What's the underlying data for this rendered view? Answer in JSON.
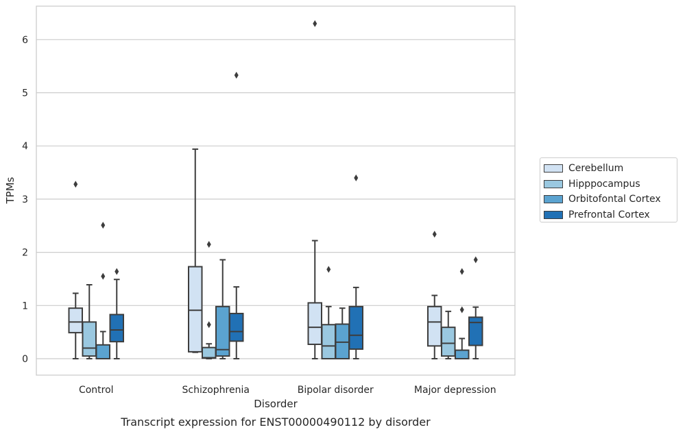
{
  "chart_data": {
    "type": "box",
    "title": "",
    "caption": "Transcript expression for ENST00000490112 by disorder",
    "xlabel": "Disorder",
    "ylabel": "TPMs",
    "ylim": [
      -0.3,
      6.6
    ],
    "yticks": [
      0,
      1,
      2,
      3,
      4,
      5,
      6
    ],
    "grid": "horizontal",
    "legend_position": "right-center",
    "categories": [
      "Control",
      "Schizophrenia",
      "Bipolar disorder",
      "Major depression"
    ],
    "series": [
      {
        "name": "Cerebellum",
        "color": "#d1e2f3",
        "boxes": [
          {
            "whislo": 0,
            "q1": 0.49,
            "med": 0.69,
            "q3": 0.95,
            "whishi": 1.23,
            "fliers": [
              3.28
            ]
          },
          {
            "whislo": 0.12,
            "q1": 0.13,
            "med": 0.91,
            "q3": 1.73,
            "whishi": 3.94,
            "fliers": []
          },
          {
            "whislo": 0,
            "q1": 0.27,
            "med": 0.59,
            "q3": 1.05,
            "whishi": 2.22,
            "fliers": [
              6.3
            ]
          },
          {
            "whislo": 0,
            "q1": 0.24,
            "med": 0.69,
            "q3": 0.98,
            "whishi": 1.19,
            "fliers": [
              2.34
            ]
          }
        ]
      },
      {
        "name": "Hipppocampus",
        "color": "#9ac8e0",
        "boxes": [
          {
            "whislo": 0,
            "q1": 0.05,
            "med": 0.2,
            "q3": 0.69,
            "whishi": 1.39,
            "fliers": []
          },
          {
            "whislo": 0,
            "q1": 0.01,
            "med": 0.02,
            "q3": 0.21,
            "whishi": 0.28,
            "fliers": [
              0.64,
              2.15
            ]
          },
          {
            "whislo": 0,
            "q1": 0.0,
            "med": 0.24,
            "q3": 0.64,
            "whishi": 0.98,
            "fliers": [
              1.68
            ]
          },
          {
            "whislo": 0,
            "q1": 0.05,
            "med": 0.29,
            "q3": 0.59,
            "whishi": 0.89,
            "fliers": []
          }
        ]
      },
      {
        "name": "Orbitofontal Cortex",
        "color": "#5ba3d0",
        "boxes": [
          {
            "whislo": 0,
            "q1": 0.0,
            "med": 0.0,
            "q3": 0.26,
            "whishi": 0.51,
            "fliers": [
              1.55,
              2.51
            ]
          },
          {
            "whislo": 0,
            "q1": 0.05,
            "med": 0.17,
            "q3": 0.98,
            "whishi": 1.86,
            "fliers": []
          },
          {
            "whislo": 0,
            "q1": 0.0,
            "med": 0.31,
            "q3": 0.65,
            "whishi": 0.95,
            "fliers": []
          },
          {
            "whislo": 0,
            "q1": 0.0,
            "med": 0.0,
            "q3": 0.16,
            "whishi": 0.38,
            "fliers": [
              0.92,
              1.64
            ]
          }
        ]
      },
      {
        "name": "Prefrontal Cortex",
        "color": "#2171b5",
        "boxes": [
          {
            "whislo": 0,
            "q1": 0.32,
            "med": 0.54,
            "q3": 0.83,
            "whishi": 1.49,
            "fliers": [
              1.64
            ]
          },
          {
            "whislo": 0,
            "q1": 0.33,
            "med": 0.51,
            "q3": 0.85,
            "whishi": 1.35,
            "fliers": [
              5.33
            ]
          },
          {
            "whislo": 0,
            "q1": 0.18,
            "med": 0.44,
            "q3": 0.98,
            "whishi": 1.34,
            "fliers": [
              3.4
            ]
          },
          {
            "whislo": 0,
            "q1": 0.25,
            "med": 0.68,
            "q3": 0.78,
            "whishi": 0.97,
            "fliers": [
              1.86
            ]
          }
        ]
      }
    ]
  }
}
